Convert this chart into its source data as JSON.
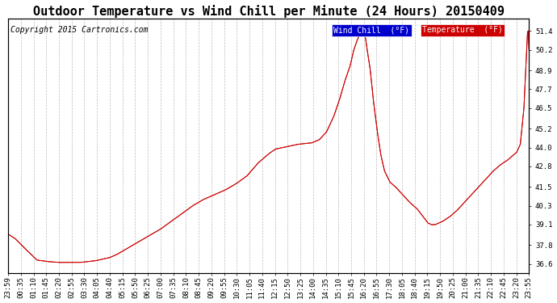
{
  "title": "Outdoor Temperature vs Wind Chill per Minute (24 Hours) 20150409",
  "copyright": "Copyright 2015 Cartronics.com",
  "ylabel_right_ticks": [
    36.6,
    37.8,
    39.1,
    40.3,
    41.5,
    42.8,
    44.0,
    45.2,
    46.5,
    47.7,
    48.9,
    50.2,
    51.4
  ],
  "ylim": [
    36.0,
    52.2
  ],
  "background_color": "#ffffff",
  "plot_bg_color": "#ffffff",
  "grid_color": "#aaaaaa",
  "wind_chill_color": "#cc0000",
  "temp_color": "#cc0000",
  "legend_wind_chill_bg": "#0000cc",
  "legend_temp_bg": "#cc0000",
  "title_fontsize": 11,
  "copyright_fontsize": 7,
  "tick_fontsize": 6.5,
  "x_tick_labels": [
    "23:59",
    "00:35",
    "01:10",
    "01:45",
    "02:20",
    "02:55",
    "03:30",
    "04:05",
    "04:40",
    "05:15",
    "05:50",
    "06:25",
    "07:00",
    "07:35",
    "08:10",
    "08:45",
    "09:20",
    "09:55",
    "10:30",
    "11:05",
    "11:40",
    "12:15",
    "12:50",
    "13:25",
    "14:00",
    "14:35",
    "15:10",
    "15:45",
    "16:20",
    "16:55",
    "17:30",
    "18:05",
    "18:40",
    "19:15",
    "19:50",
    "20:25",
    "21:00",
    "21:35",
    "22:10",
    "22:45",
    "23:20",
    "23:55"
  ]
}
